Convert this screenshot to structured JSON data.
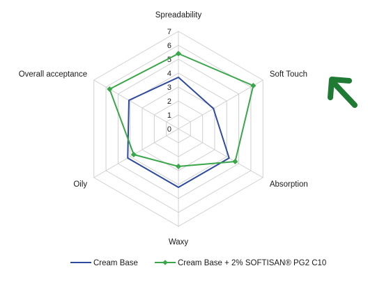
{
  "chart_data": {
    "type": "radar",
    "axes": [
      "Spreadability",
      "Soft Touch",
      "Absorption",
      "Waxy",
      "Oily",
      "Overall acceptance"
    ],
    "range": [
      0,
      7
    ],
    "ticks": [
      "0",
      "1",
      "2",
      "3",
      "4",
      "5",
      "6",
      "7"
    ],
    "grid": true,
    "legend_position": "bottom",
    "series": [
      {
        "name": "Cream Base",
        "color": "#2e4a9e",
        "marker": "none",
        "values": [
          3.7,
          2.9,
          4.2,
          4.2,
          4.2,
          4.1
        ]
      },
      {
        "name": "Cream Base + 2% SOFTISAN® PG2 C10",
        "color": "#3aa64a",
        "marker": "diamond",
        "values": [
          5.4,
          6.2,
          4.7,
          2.7,
          3.7,
          5.7
        ]
      }
    ]
  },
  "annotation": {
    "icon": "arrow-up-left-icon",
    "color": "#1f7a33"
  }
}
